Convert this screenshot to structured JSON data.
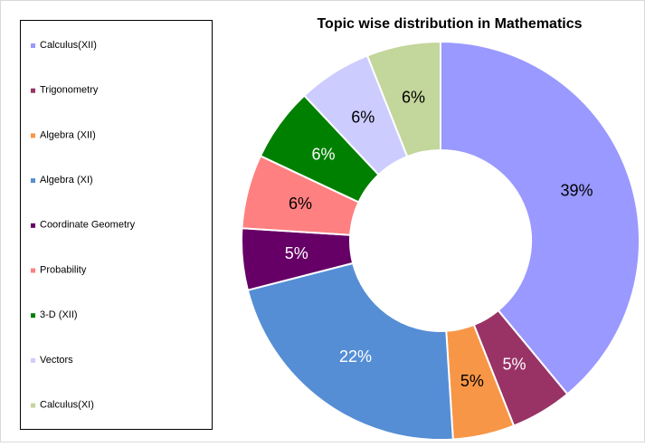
{
  "chart_data": {
    "type": "donut",
    "title": "Topic wise distribution in Mathematics",
    "categories": [
      "Calculus(XII)",
      "Trigonometry",
      "Algebra (XII)",
      "Algebra (XI)",
      "Coordinate Geometry",
      "Probability",
      "3-D (XII)",
      "Vectors",
      "Calculus(XI)"
    ],
    "values": [
      39,
      5,
      5,
      22,
      5,
      6,
      6,
      6,
      6
    ],
    "value_labels": [
      "39%",
      "5%",
      "5%",
      "22%",
      "5%",
      "6%",
      "6%",
      "6%",
      "6%"
    ],
    "colors": [
      "#9999ff",
      "#993366",
      "#f79646",
      "#558ed5",
      "#660066",
      "#ff8080",
      "#008000",
      "#ccccff",
      "#c3d69b"
    ],
    "legend": "left"
  }
}
